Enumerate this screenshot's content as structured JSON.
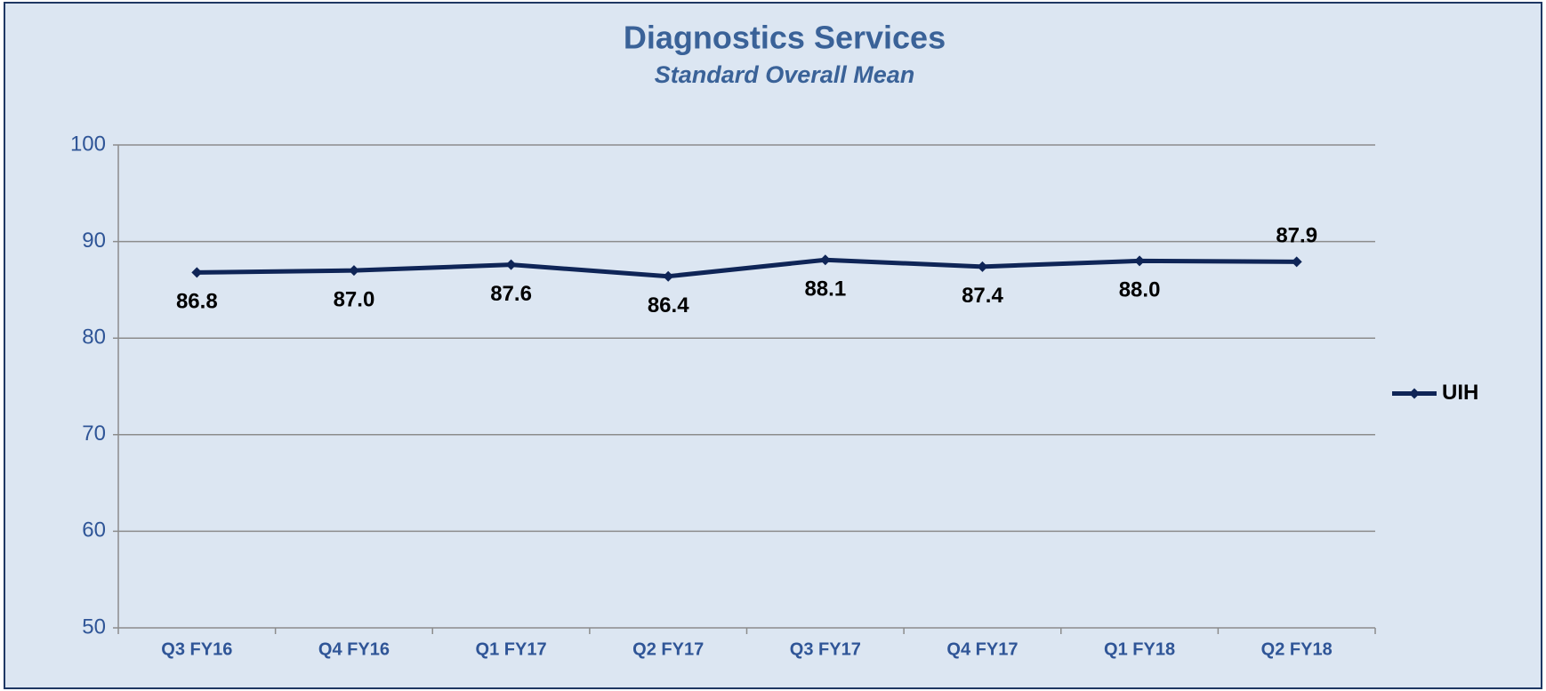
{
  "chart_data": {
    "type": "line",
    "title": "Diagnostics Services",
    "subtitle": "Standard Overall Mean",
    "categories": [
      "Q3 FY16",
      "Q4 FY16",
      "Q1 FY17",
      "Q2 FY17",
      "Q3 FY17",
      "Q4 FY17",
      "Q1 FY18",
      "Q2 FY18"
    ],
    "series": [
      {
        "name": "UIH",
        "color": "#0f2557",
        "values": [
          86.8,
          87.0,
          87.6,
          86.4,
          88.1,
          87.4,
          88.0,
          87.9
        ],
        "value_labels": [
          "86.8",
          "87.0",
          "87.6",
          "86.4",
          "88.1",
          "87.4",
          "88.0",
          "87.9"
        ]
      }
    ],
    "ylim": [
      50,
      100
    ],
    "yticks": [
      50,
      60,
      70,
      80,
      90,
      100
    ],
    "grid": true,
    "legend": "right"
  }
}
